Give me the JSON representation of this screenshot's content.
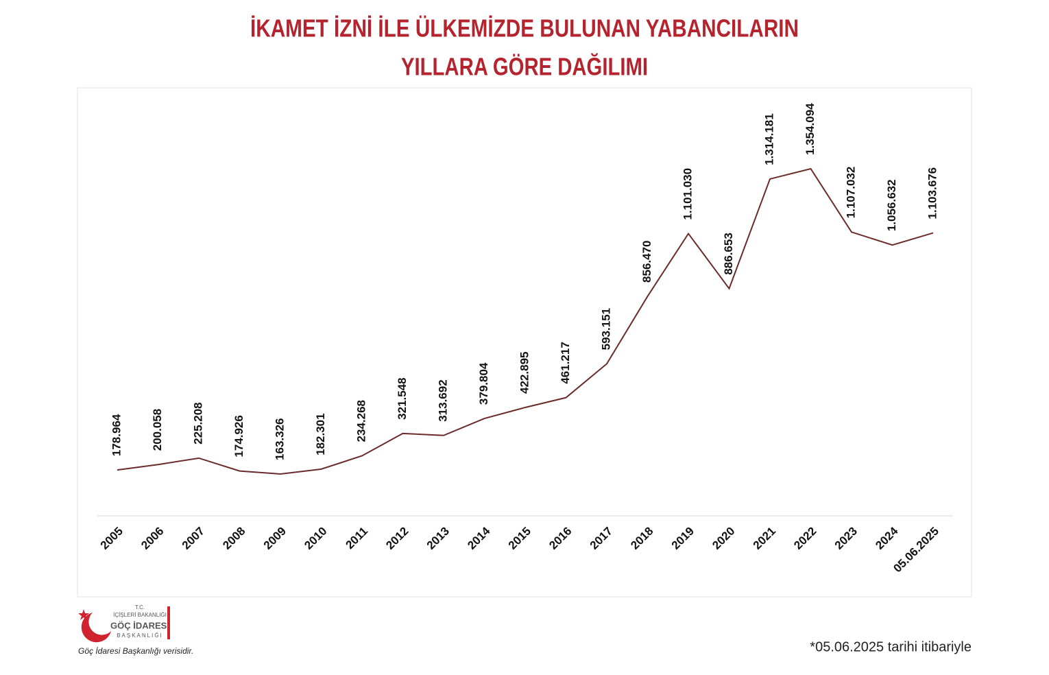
{
  "chart_data": {
    "type": "line",
    "title": [
      "İKAMET İZNİ İLE ÜLKEMİZDE BULUNAN YABANCILARIN",
      "YILLARA GÖRE DAĞILIMI"
    ],
    "categories": [
      "2005",
      "2006",
      "2007",
      "2008",
      "2009",
      "2010",
      "2011",
      "2012",
      "2013",
      "2014",
      "2015",
      "2016",
      "2017",
      "2018",
      "2019",
      "2020",
      "2021",
      "2022",
      "2023",
      "2024",
      "05.06.2025"
    ],
    "values": [
      178964,
      200058,
      225208,
      174926,
      163326,
      182301,
      234268,
      321548,
      313692,
      379804,
      422895,
      461217,
      593151,
      856470,
      1101030,
      886653,
      1314181,
      1354094,
      1107032,
      1056632,
      1103676
    ],
    "value_labels": [
      "178.964",
      "200.058",
      "225.208",
      "174.926",
      "163.326",
      "182.301",
      "234.268",
      "321.548",
      "313.692",
      "379.804",
      "422.895",
      "461.217",
      "593.151",
      "856.470",
      "1.101.030",
      "886.653",
      "1.314.181",
      "1.354.094",
      "1.107.032",
      "1.056.632",
      "1.103.676"
    ],
    "color": "#6b2a2a",
    "footnote": "*05.06.2025 tarihi itibariyle",
    "source": "Göç İdaresi Başkanlığı verisidir.",
    "logo": {
      "line1": "T.C.",
      "line2": "İÇİŞLERİ BAKANLIĞI",
      "line3": "GÖÇ İDARESİ",
      "line4": "BAŞKANLIĞI"
    }
  }
}
